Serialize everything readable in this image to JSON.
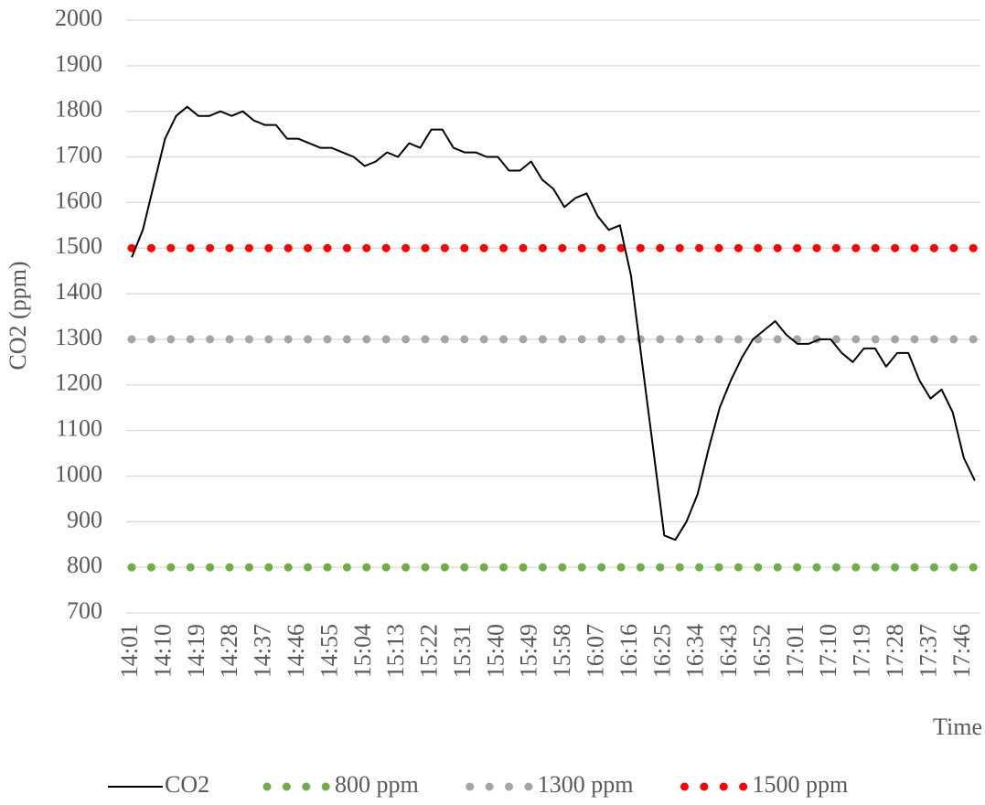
{
  "chart_data": {
    "type": "line",
    "ylabel": "CO2 (ppm)",
    "xlabel": "Time",
    "categories": [
      "14:01",
      null,
      null,
      "14:10",
      null,
      null,
      "14:19",
      null,
      null,
      "14:28",
      null,
      null,
      "14:37",
      null,
      null,
      "14:46",
      null,
      null,
      "14:55",
      null,
      null,
      "15:04",
      null,
      null,
      "15:13",
      null,
      null,
      "15:22",
      null,
      null,
      "15:31",
      null,
      null,
      "15:40",
      null,
      null,
      "15:49",
      null,
      null,
      "15:58",
      null,
      null,
      "16:07",
      null,
      null,
      "16:16",
      null,
      null,
      "16:25",
      null,
      null,
      "16:34",
      null,
      null,
      "16:43",
      null,
      null,
      "16:52",
      null,
      null,
      "17:01",
      null,
      null,
      "17:10",
      null,
      null,
      "17:19",
      null,
      null,
      "17:28",
      null,
      null,
      "17:37",
      null,
      null,
      "17:46",
      null
    ],
    "series": [
      {
        "name": "CO2",
        "color": "#000000",
        "values": [
          1480,
          1540,
          1640,
          1740,
          1790,
          1810,
          1790,
          1790,
          1800,
          1790,
          1800,
          1780,
          1770,
          1770,
          1740,
          1740,
          1730,
          1720,
          1720,
          1710,
          1700,
          1680,
          1690,
          1710,
          1700,
          1730,
          1720,
          1760,
          1760,
          1720,
          1710,
          1710,
          1700,
          1700,
          1670,
          1670,
          1690,
          1650,
          1630,
          1590,
          1610,
          1620,
          1570,
          1540,
          1550,
          1440,
          1250,
          1060,
          870,
          860,
          900,
          960,
          1060,
          1150,
          1210,
          1260,
          1300,
          1320,
          1340,
          1310,
          1290,
          1290,
          1300,
          1300,
          1270,
          1250,
          1280,
          1280,
          1240,
          1270,
          1270,
          1210,
          1170,
          1190,
          1140,
          1040,
          990
        ]
      }
    ],
    "reference_lines": [
      {
        "name": "800 ppm",
        "value": 800,
        "color": "#70ad47"
      },
      {
        "name": "1300 ppm",
        "value": 1300,
        "color": "#a5a5a5"
      },
      {
        "name": "1500 ppm",
        "value": 1500,
        "color": "#ff0000"
      }
    ],
    "ylim": [
      700,
      2000
    ],
    "yticks": [
      700,
      800,
      900,
      1000,
      1100,
      1200,
      1300,
      1400,
      1500,
      1600,
      1700,
      1800,
      1900,
      2000
    ],
    "grid": true,
    "legend": "bottom"
  }
}
